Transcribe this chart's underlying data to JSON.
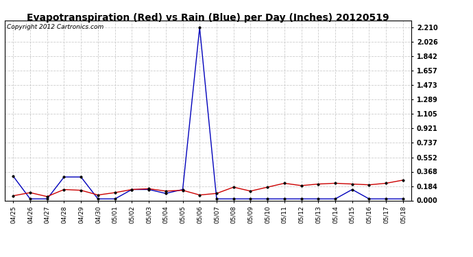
{
  "title": "Evapotranspiration (Red) vs Rain (Blue) per Day (Inches) 20120519",
  "copyright": "Copyright 2012 Cartronics.com",
  "x_labels": [
    "04/25",
    "04/26",
    "04/27",
    "04/28",
    "04/29",
    "04/30",
    "05/01",
    "05/02",
    "05/03",
    "05/04",
    "05/05",
    "05/06",
    "05/07",
    "05/08",
    "05/09",
    "05/10",
    "05/11",
    "05/12",
    "05/13",
    "05/14",
    "05/15",
    "05/16",
    "05/17",
    "05/18"
  ],
  "rain_blue": [
    0.31,
    0.02,
    0.02,
    0.3,
    0.3,
    0.02,
    0.02,
    0.14,
    0.14,
    0.09,
    0.14,
    2.21,
    0.02,
    0.02,
    0.02,
    0.02,
    0.02,
    0.02,
    0.02,
    0.02,
    0.14,
    0.02,
    0.02,
    0.02
  ],
  "evap_red": [
    0.06,
    0.1,
    0.05,
    0.14,
    0.13,
    0.07,
    0.1,
    0.14,
    0.15,
    0.12,
    0.13,
    0.07,
    0.09,
    0.17,
    0.12,
    0.17,
    0.22,
    0.19,
    0.21,
    0.22,
    0.21,
    0.2,
    0.22,
    0.26
  ],
  "ylim": [
    0.0,
    2.3
  ],
  "yticks": [
    0.0,
    0.184,
    0.368,
    0.552,
    0.737,
    0.921,
    1.105,
    1.289,
    1.473,
    1.657,
    1.842,
    2.026,
    2.21
  ],
  "blue_color": "#0000bb",
  "red_color": "#cc0000",
  "bg_color": "#ffffff",
  "plot_bg_color": "#ffffff",
  "grid_color": "#cccccc",
  "title_fontsize": 10,
  "copyright_fontsize": 6.5
}
